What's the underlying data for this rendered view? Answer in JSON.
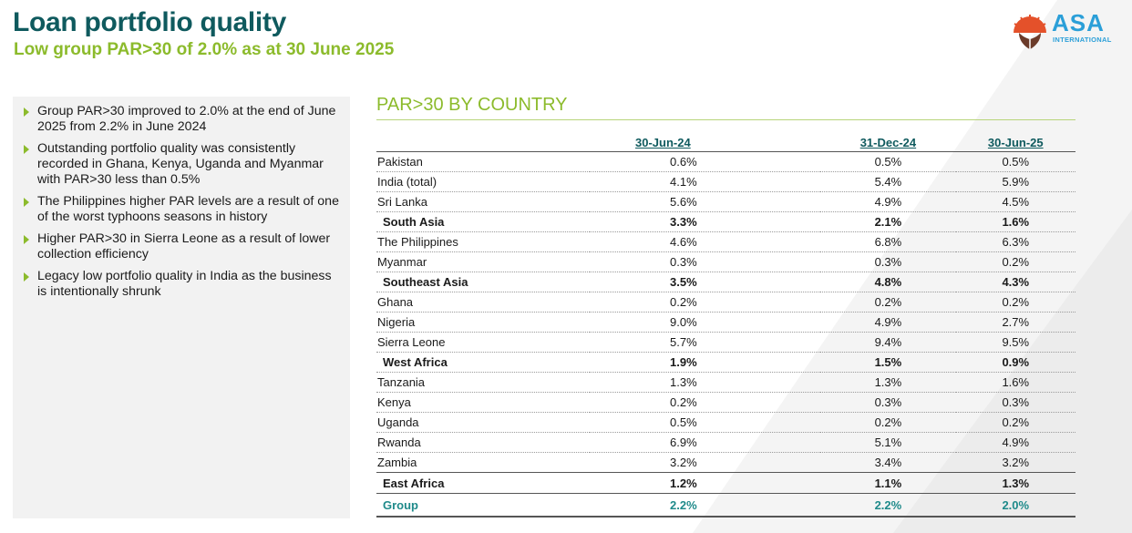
{
  "header": {
    "title": "Loan portfolio quality",
    "subtitle": "Low group PAR>30 of 2.0% as at 30 June 2025"
  },
  "logo": {
    "word": "ASA",
    "sub": "INTERNATIONAL",
    "icon": "asa-sunrise-hands-icon",
    "colors": {
      "brand": "#2b9fd8",
      "accent": "#e4512a"
    }
  },
  "bullets": [
    "Group PAR>30 improved to 2.0% at the end of June 2025 from 2.2% in June 2024",
    "Outstanding portfolio quality was consistently recorded in Ghana, Kenya, Uganda and Myanmar with PAR>30 less than 0.5%",
    "The Philippines higher PAR levels are a result of one of the worst typhoons seasons in history",
    "Higher PAR>30 in Sierra Leone as a result of lower collection efficiency",
    "Legacy low portfolio quality in India as the business is intentionally shrunk"
  ],
  "table": {
    "title": "PAR>30 BY COUNTRY",
    "columns": [
      "30-Jun-24",
      "31-Dec-24",
      "30-Jun-25"
    ],
    "rows": [
      {
        "label": "Pakistan",
        "values": [
          "0.6%",
          "0.5%",
          "0.5%"
        ],
        "kind": "country"
      },
      {
        "label": "India (total)",
        "values": [
          "4.1%",
          "5.4%",
          "5.9%"
        ],
        "kind": "country"
      },
      {
        "label": "Sri Lanka",
        "values": [
          "5.6%",
          "4.9%",
          "4.5%"
        ],
        "kind": "country"
      },
      {
        "label": "South Asia",
        "values": [
          "3.3%",
          "2.1%",
          "1.6%"
        ],
        "kind": "subtotal"
      },
      {
        "label": "The Philippines",
        "values": [
          "4.6%",
          "6.8%",
          "6.3%"
        ],
        "kind": "country"
      },
      {
        "label": "Myanmar",
        "values": [
          "0.3%",
          "0.3%",
          "0.2%"
        ],
        "kind": "country"
      },
      {
        "label": "Southeast Asia",
        "values": [
          "3.5%",
          "4.8%",
          "4.3%"
        ],
        "kind": "subtotal"
      },
      {
        "label": "Ghana",
        "values": [
          "0.2%",
          "0.2%",
          "0.2%"
        ],
        "kind": "country"
      },
      {
        "label": "Nigeria",
        "values": [
          "9.0%",
          "4.9%",
          "2.7%"
        ],
        "kind": "country"
      },
      {
        "label": "Sierra Leone",
        "values": [
          "5.7%",
          "9.4%",
          "9.5%"
        ],
        "kind": "country"
      },
      {
        "label": "West Africa",
        "values": [
          "1.9%",
          "1.5%",
          "0.9%"
        ],
        "kind": "subtotal"
      },
      {
        "label": "Tanzania",
        "values": [
          "1.3%",
          "1.3%",
          "1.6%"
        ],
        "kind": "country"
      },
      {
        "label": "Kenya",
        "values": [
          "0.2%",
          "0.3%",
          "0.3%"
        ],
        "kind": "country"
      },
      {
        "label": "Uganda",
        "values": [
          "0.5%",
          "0.2%",
          "0.2%"
        ],
        "kind": "country"
      },
      {
        "label": "Rwanda",
        "values": [
          "6.9%",
          "5.1%",
          "4.9%"
        ],
        "kind": "country"
      },
      {
        "label": "Zambia",
        "values": [
          "3.2%",
          "3.4%",
          "3.2%"
        ],
        "kind": "country"
      },
      {
        "label": "East Africa",
        "values": [
          "1.2%",
          "1.1%",
          "1.3%"
        ],
        "kind": "east"
      },
      {
        "label": "Group",
        "values": [
          "2.2%",
          "2.2%",
          "2.0%"
        ],
        "kind": "group"
      }
    ]
  },
  "colors": {
    "title": "#0f5a5e",
    "accent_green": "#8cbb2c",
    "group_teal": "#1f8a8a",
    "panel_bg": "#f2f2f2"
  }
}
